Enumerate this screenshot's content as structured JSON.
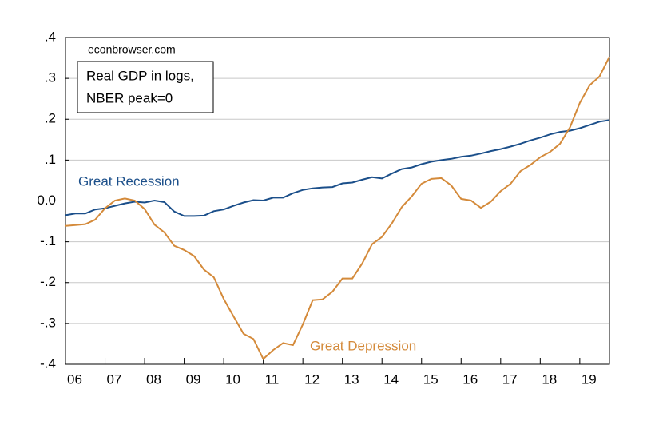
{
  "chart_data": {
    "type": "line",
    "annotations": [
      "econbrowser.com",
      "Real GDP in logs,",
      "NBER peak=0"
    ],
    "x": [
      6,
      6.25,
      6.5,
      6.75,
      7,
      7.25,
      7.5,
      7.75,
      8,
      8.25,
      8.5,
      8.75,
      9,
      9.25,
      9.5,
      9.75,
      10,
      10.25,
      10.5,
      10.75,
      11,
      11.25,
      11.5,
      11.75,
      12,
      12.25,
      12.5,
      12.75,
      13,
      13.25,
      13.5,
      13.75,
      14,
      14.25,
      14.5,
      14.75,
      15,
      15.25,
      15.5,
      15.75,
      16,
      16.25,
      16.5,
      16.75,
      17,
      17.25,
      17.5,
      17.75,
      18,
      18.25,
      18.5,
      18.75,
      19,
      19.25,
      19.5,
      19.75
    ],
    "series": [
      {
        "name": "Great Recession",
        "color": "#1b4f8a",
        "values": [
          -0.035,
          -0.031,
          -0.031,
          -0.021,
          -0.018,
          -0.012,
          -0.006,
          -0.002,
          -0.004,
          0.001,
          -0.003,
          -0.026,
          -0.037,
          -0.037,
          -0.036,
          -0.025,
          -0.021,
          -0.012,
          -0.004,
          0.002,
          0.001,
          0.008,
          0.008,
          0.019,
          0.027,
          0.031,
          0.033,
          0.034,
          0.043,
          0.045,
          0.052,
          0.058,
          0.055,
          0.067,
          0.078,
          0.082,
          0.09,
          0.096,
          0.1,
          0.103,
          0.108,
          0.111,
          0.116,
          0.122,
          0.127,
          0.133,
          0.14,
          0.148,
          0.155,
          0.163,
          0.169,
          0.172,
          0.178,
          0.186,
          0.194,
          0.198
        ]
      },
      {
        "name": "Great Depression",
        "color": "#d48a3a",
        "values": [
          -0.061,
          -0.059,
          -0.057,
          -0.046,
          -0.018,
          0.001,
          0.006,
          0.001,
          -0.02,
          -0.058,
          -0.077,
          -0.11,
          -0.12,
          -0.135,
          -0.168,
          -0.187,
          -0.24,
          -0.283,
          -0.325,
          -0.338,
          -0.387,
          -0.365,
          -0.348,
          -0.353,
          -0.302,
          -0.243,
          -0.241,
          -0.222,
          -0.19,
          -0.19,
          -0.153,
          -0.106,
          -0.088,
          -0.055,
          -0.015,
          0.011,
          0.042,
          0.054,
          0.056,
          0.038,
          0.005,
          0.001,
          -0.017,
          -0.002,
          0.024,
          0.042,
          0.073,
          0.088,
          0.107,
          0.12,
          0.14,
          0.18,
          0.24,
          0.283,
          0.305,
          0.353
        ]
      }
    ],
    "xlim": [
      6,
      19.75
    ],
    "xticks": [
      {
        "value": 6,
        "label": "06"
      },
      {
        "value": 7,
        "label": "07"
      },
      {
        "value": 8,
        "label": "08"
      },
      {
        "value": 9,
        "label": "09"
      },
      {
        "value": 10,
        "label": "10"
      },
      {
        "value": 11,
        "label": "11"
      },
      {
        "value": 12,
        "label": "12"
      },
      {
        "value": 13,
        "label": "13"
      },
      {
        "value": 14,
        "label": "14"
      },
      {
        "value": 15,
        "label": "15"
      },
      {
        "value": 16,
        "label": "16"
      },
      {
        "value": 17,
        "label": "17"
      },
      {
        "value": 18,
        "label": "18"
      },
      {
        "value": 19,
        "label": "19"
      }
    ],
    "ylim": [
      -0.4,
      0.4
    ],
    "yticks": [
      {
        "value": -0.4,
        "label": "-.4"
      },
      {
        "value": -0.3,
        "label": "-.3"
      },
      {
        "value": -0.2,
        "label": "-.2"
      },
      {
        "value": -0.1,
        "label": "-.1"
      },
      {
        "value": 0,
        "label": "0.0"
      },
      {
        "value": 0.1,
        "label": ".1"
      },
      {
        "value": 0.2,
        "label": ".2"
      },
      {
        "value": 0.3,
        "label": ".3"
      },
      {
        "value": 0.4,
        "label": ".4"
      }
    ],
    "grid": true
  }
}
